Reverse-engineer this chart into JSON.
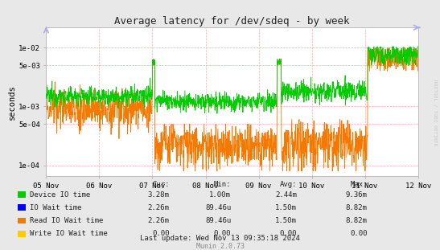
{
  "title": "Average latency for /dev/sdeq - by week",
  "ylabel": "seconds",
  "bg_color": "#e8e8e8",
  "plot_bg_color": "#ffffff",
  "grid_color": "#ffaaaa",
  "yticks": [
    0.0001,
    0.0005,
    0.001,
    0.005,
    0.01
  ],
  "ytick_labels": [
    "1e-04",
    "5e-04",
    "1e-03",
    "5e-03",
    "1e-02"
  ],
  "ylim": [
    6.5e-05,
    0.022
  ],
  "xtick_labels": [
    "05 Nov",
    "06 Nov",
    "07 Nov",
    "08 Nov",
    "09 Nov",
    "10 Nov",
    "11 Nov",
    "12 Nov"
  ],
  "legend_entries": [
    {
      "label": "Device IO time",
      "color": "#00cc00"
    },
    {
      "label": "IO Wait time",
      "color": "#0000ff"
    },
    {
      "label": "Read IO Wait time",
      "color": "#f57900"
    },
    {
      "label": "Write IO Wait time",
      "color": "#ffcc00"
    }
  ],
  "table_headers": [
    "Cur:",
    "Min:",
    "Avg:",
    "Max:"
  ],
  "table_data": [
    [
      "3.28m",
      "1.00m",
      "2.44m",
      "9.36m"
    ],
    [
      "2.26m",
      "89.46u",
      "1.50m",
      "8.82m"
    ],
    [
      "2.26m",
      "89.46u",
      "1.50m",
      "8.82m"
    ],
    [
      "0.00",
      "0.00",
      "0.00",
      "0.00"
    ]
  ],
  "footer": "Last update: Wed Nov 13 09:35:18 2024",
  "munin_text": "Munin 2.0.73",
  "watermark": "RRDTOOL / TOBI OETIKER",
  "green_color": "#00cc00",
  "orange_color": "#f57900",
  "lw": 0.6
}
